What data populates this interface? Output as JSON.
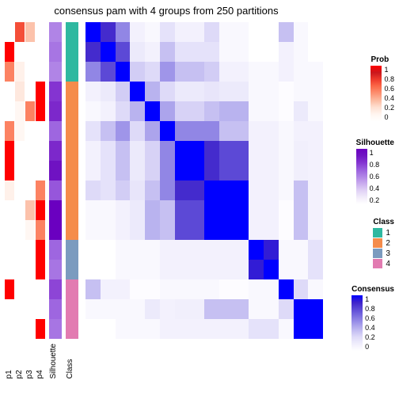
{
  "title": "consensus pam with 4 groups from 250 partitions",
  "anno_column_labels": [
    "p1",
    "p2",
    "p3",
    "p4",
    "Silhouette",
    "Class"
  ],
  "colors": {
    "background": "#ffffff",
    "text": "#000000"
  },
  "palettes": {
    "prob": [
      "#ffffff",
      "#fff5f0",
      "#fee0d2",
      "#fcbba1",
      "#fc9272",
      "#fb6a4a",
      "#ef3b2c",
      "#cb181d",
      "#ff0000"
    ],
    "silhouette": [
      "#ffffff",
      "#f2ecfa",
      "#e0d1f5",
      "#c9abee",
      "#b084e6",
      "#9a5fde",
      "#8434d1",
      "#7016c3",
      "#6a00c0"
    ],
    "consensus": [
      "#ffffff",
      "#f0eefc",
      "#dedaf8",
      "#c0baf1",
      "#9f95e9",
      "#7d70e0",
      "#5c49d6",
      "#3e23cb",
      "#0000ff"
    ],
    "class": {
      "1": "#2fb8a0",
      "2": "#f58c4b",
      "3": "#7b9bbf",
      "4": "#e27bb1"
    }
  },
  "legends": {
    "prob": {
      "title": "Prob",
      "ticks": [
        "1",
        "0.8",
        "0.6",
        "0.4",
        "0.2",
        "0"
      ]
    },
    "silhouette": {
      "title": "Silhouette",
      "ticks": [
        "1",
        "0.8",
        "0.6",
        "0.4",
        "0.2"
      ]
    },
    "class": {
      "title": "Class",
      "items": [
        "1",
        "2",
        "3",
        "4"
      ]
    },
    "consensus": {
      "title": "Consensus",
      "ticks": [
        "1",
        "0.8",
        "0.6",
        "0.4",
        "0.2",
        "0"
      ]
    }
  },
  "annotation_columns": {
    "p1": [
      0.0,
      1.0,
      0.55,
      0.0,
      0.0,
      0.55,
      1.0,
      1.0,
      0.15,
      0.0,
      0.0,
      0.0,
      0.0,
      1.0,
      0.0,
      0.0
    ],
    "p2": [
      0.7,
      0.0,
      0.15,
      0.2,
      0.1,
      0.1,
      0.0,
      0.0,
      0.0,
      0.0,
      0.0,
      0.0,
      0.0,
      0.0,
      0.0,
      0.0
    ],
    "p3": [
      0.35,
      0.0,
      0.0,
      0.0,
      0.55,
      0.0,
      0.0,
      0.0,
      0.0,
      0.35,
      0.1,
      0.0,
      0.0,
      0.0,
      0.0,
      0.0
    ],
    "p4": [
      0.0,
      0.0,
      0.0,
      1.0,
      1.0,
      0.0,
      0.0,
      0.0,
      0.55,
      1.0,
      0.55,
      1.0,
      1.0,
      0.0,
      0.0,
      1.0
    ],
    "silhouette": [
      0.5,
      0.55,
      0.5,
      0.75,
      0.8,
      0.6,
      0.8,
      0.9,
      0.65,
      1.0,
      1.0,
      0.6,
      0.55,
      0.7,
      0.6,
      0.55
    ],
    "class": [
      "1",
      "1",
      "1",
      "2",
      "2",
      "2",
      "2",
      "2",
      "2",
      "2",
      "2",
      "3",
      "3",
      "4",
      "4",
      "4"
    ]
  },
  "heatmap": {
    "type": "heatmap",
    "n": 16,
    "values": [
      [
        1.0,
        0.85,
        0.55,
        0.1,
        0.05,
        0.2,
        0.1,
        0.1,
        0.25,
        0.05,
        0.05,
        0.0,
        0.0,
        0.35,
        0.05,
        0.0
      ],
      [
        0.85,
        1.0,
        0.75,
        0.15,
        0.1,
        0.35,
        0.2,
        0.2,
        0.2,
        0.05,
        0.05,
        0.0,
        0.0,
        0.1,
        0.05,
        0.0
      ],
      [
        0.55,
        0.75,
        1.0,
        0.3,
        0.25,
        0.5,
        0.35,
        0.35,
        0.3,
        0.1,
        0.1,
        0.05,
        0.05,
        0.1,
        0.05,
        0.05
      ],
      [
        0.1,
        0.15,
        0.3,
        1.0,
        0.4,
        0.25,
        0.15,
        0.15,
        0.18,
        0.15,
        0.15,
        0.05,
        0.05,
        0.02,
        0.05,
        0.05
      ],
      [
        0.05,
        0.1,
        0.25,
        0.4,
        1.0,
        0.45,
        0.28,
        0.28,
        0.35,
        0.4,
        0.4,
        0.05,
        0.05,
        0.02,
        0.15,
        0.05
      ],
      [
        0.2,
        0.35,
        0.5,
        0.25,
        0.45,
        1.0,
        0.55,
        0.55,
        0.55,
        0.35,
        0.35,
        0.1,
        0.1,
        0.05,
        0.1,
        0.1
      ],
      [
        0.1,
        0.2,
        0.35,
        0.15,
        0.28,
        0.55,
        1.0,
        1.0,
        0.85,
        0.75,
        0.75,
        0.1,
        0.1,
        0.05,
        0.12,
        0.1
      ],
      [
        0.1,
        0.2,
        0.35,
        0.15,
        0.28,
        0.55,
        1.0,
        1.0,
        0.85,
        0.75,
        0.75,
        0.1,
        0.1,
        0.05,
        0.12,
        0.1
      ],
      [
        0.25,
        0.2,
        0.3,
        0.18,
        0.35,
        0.55,
        0.85,
        0.85,
        1.0,
        1.0,
        1.0,
        0.1,
        0.1,
        0.05,
        0.35,
        0.1
      ],
      [
        0.05,
        0.05,
        0.1,
        0.15,
        0.4,
        0.35,
        0.75,
        0.75,
        1.0,
        1.0,
        1.0,
        0.1,
        0.1,
        0.02,
        0.35,
        0.1
      ],
      [
        0.05,
        0.05,
        0.1,
        0.15,
        0.4,
        0.35,
        0.75,
        0.75,
        1.0,
        1.0,
        1.0,
        0.1,
        0.1,
        0.02,
        0.35,
        0.1
      ],
      [
        0.0,
        0.0,
        0.05,
        0.05,
        0.05,
        0.1,
        0.1,
        0.1,
        0.1,
        0.1,
        0.1,
        1.0,
        0.9,
        0.05,
        0.05,
        0.2
      ],
      [
        0.0,
        0.0,
        0.05,
        0.05,
        0.05,
        0.1,
        0.1,
        0.1,
        0.1,
        0.1,
        0.1,
        0.9,
        1.0,
        0.05,
        0.05,
        0.2
      ],
      [
        0.35,
        0.1,
        0.1,
        0.02,
        0.02,
        0.05,
        0.05,
        0.05,
        0.05,
        0.02,
        0.02,
        0.05,
        0.05,
        1.0,
        0.25,
        0.05
      ],
      [
        0.05,
        0.05,
        0.05,
        0.05,
        0.15,
        0.1,
        0.12,
        0.12,
        0.35,
        0.35,
        0.35,
        0.05,
        0.05,
        0.25,
        1.0,
        1.0
      ],
      [
        0.0,
        0.0,
        0.05,
        0.05,
        0.05,
        0.1,
        0.1,
        0.1,
        0.1,
        0.1,
        0.1,
        0.2,
        0.2,
        0.05,
        1.0,
        1.0
      ]
    ]
  }
}
